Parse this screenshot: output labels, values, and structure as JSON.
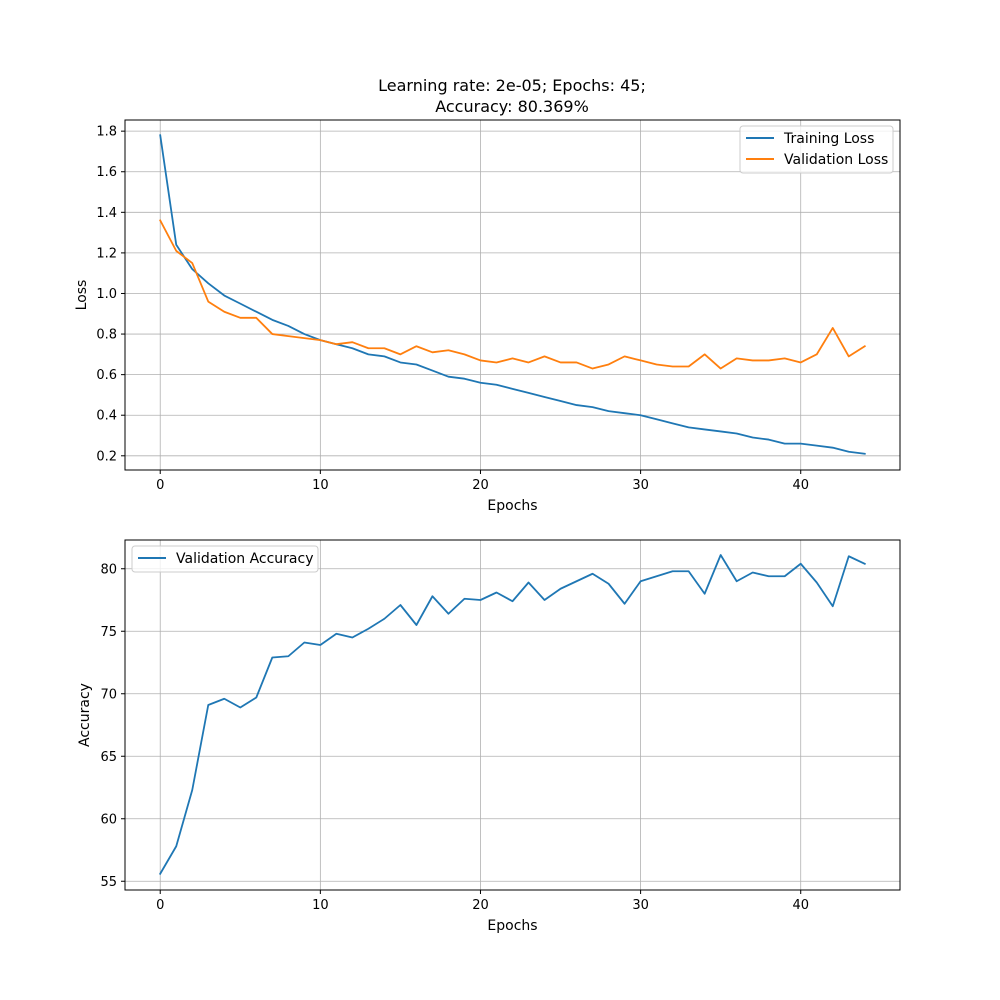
{
  "colors": {
    "training": "#1f77b4",
    "validation": "#ff7f0e",
    "grid": "#b0b0b0",
    "axis": "#000000"
  },
  "chart_data": [
    {
      "type": "line",
      "title_line1": "Learning rate: 2e-05; Epochs: 45;",
      "title_line2": "Accuracy: 80.369%",
      "xlabel": "Epochs",
      "ylabel": "Loss",
      "xlim": [
        -2.2,
        46.2
      ],
      "ylim": [
        0.13,
        1.855
      ],
      "xticks": [
        0,
        10,
        20,
        30,
        40
      ],
      "xtick_labels": [
        "0",
        "10",
        "20",
        "30",
        "40"
      ],
      "yticks": [
        0.2,
        0.4,
        0.6,
        0.8,
        1.0,
        1.2,
        1.4,
        1.6,
        1.8
      ],
      "ytick_labels": [
        "0.2",
        "0.4",
        "0.6",
        "0.8",
        "1.0",
        "1.2",
        "1.4",
        "1.6",
        "1.8"
      ],
      "grid": true,
      "legend_position": "upper-right",
      "x": [
        0,
        1,
        2,
        3,
        4,
        5,
        6,
        7,
        8,
        9,
        10,
        11,
        12,
        13,
        14,
        15,
        16,
        17,
        18,
        19,
        20,
        21,
        22,
        23,
        24,
        25,
        26,
        27,
        28,
        29,
        30,
        31,
        32,
        33,
        34,
        35,
        36,
        37,
        38,
        39,
        40,
        41,
        42,
        43,
        44
      ],
      "series": [
        {
          "name": "Training Loss",
          "color": "#1f77b4",
          "values": [
            1.78,
            1.24,
            1.12,
            1.05,
            0.99,
            0.95,
            0.91,
            0.87,
            0.84,
            0.8,
            0.77,
            0.75,
            0.73,
            0.7,
            0.69,
            0.66,
            0.65,
            0.62,
            0.59,
            0.58,
            0.56,
            0.55,
            0.53,
            0.51,
            0.49,
            0.47,
            0.45,
            0.44,
            0.42,
            0.41,
            0.4,
            0.38,
            0.36,
            0.34,
            0.33,
            0.32,
            0.31,
            0.29,
            0.28,
            0.26,
            0.26,
            0.25,
            0.24,
            0.22,
            0.21
          ]
        },
        {
          "name": "Validation Loss",
          "color": "#ff7f0e",
          "values": [
            1.36,
            1.21,
            1.15,
            0.96,
            0.91,
            0.88,
            0.88,
            0.8,
            0.79,
            0.78,
            0.77,
            0.75,
            0.76,
            0.73,
            0.73,
            0.7,
            0.74,
            0.71,
            0.72,
            0.7,
            0.67,
            0.66,
            0.68,
            0.66,
            0.69,
            0.66,
            0.66,
            0.63,
            0.65,
            0.69,
            0.67,
            0.65,
            0.64,
            0.64,
            0.7,
            0.63,
            0.68,
            0.67,
            0.67,
            0.68,
            0.66,
            0.7,
            0.83,
            0.69,
            0.74
          ]
        }
      ]
    },
    {
      "type": "line",
      "xlabel": "Epochs",
      "ylabel": "Accuracy",
      "xlim": [
        -2.2,
        46.2
      ],
      "ylim": [
        54.3,
        82.3
      ],
      "xticks": [
        0,
        10,
        20,
        30,
        40
      ],
      "xtick_labels": [
        "0",
        "10",
        "20",
        "30",
        "40"
      ],
      "yticks": [
        55,
        60,
        65,
        70,
        75,
        80
      ],
      "ytick_labels": [
        "55",
        "60",
        "65",
        "70",
        "75",
        "80"
      ],
      "grid": true,
      "legend_position": "upper-left",
      "x": [
        0,
        1,
        2,
        3,
        4,
        5,
        6,
        7,
        8,
        9,
        10,
        11,
        12,
        13,
        14,
        15,
        16,
        17,
        18,
        19,
        20,
        21,
        22,
        23,
        24,
        25,
        26,
        27,
        28,
        29,
        30,
        31,
        32,
        33,
        34,
        35,
        36,
        37,
        38,
        39,
        40,
        41,
        42,
        43,
        44
      ],
      "series": [
        {
          "name": "Validation Accuracy",
          "color": "#1f77b4",
          "values": [
            55.6,
            57.8,
            62.3,
            69.1,
            69.6,
            68.9,
            69.7,
            72.9,
            73.0,
            74.1,
            73.9,
            74.8,
            74.5,
            75.2,
            76.0,
            77.1,
            75.5,
            77.8,
            76.4,
            77.6,
            77.5,
            78.1,
            77.4,
            78.9,
            77.5,
            78.4,
            79.0,
            79.6,
            78.8,
            77.2,
            79.0,
            79.4,
            79.8,
            79.8,
            78.0,
            81.1,
            79.0,
            79.7,
            79.4,
            79.4,
            80.4,
            78.9,
            77.0,
            81.0,
            80.4
          ]
        }
      ]
    }
  ]
}
